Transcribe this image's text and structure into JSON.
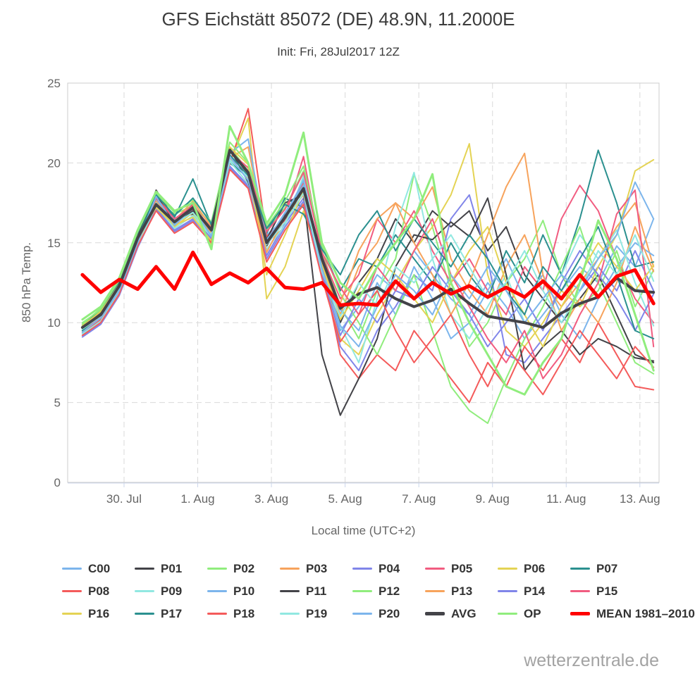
{
  "header": {
    "title": "GFS Eichstätt 85072 (DE) 48.9N, 11.2000E",
    "subtitle": "Init: Fri, 28Jul2017 12Z"
  },
  "footer": {
    "brand": "wetterzentrale.de"
  },
  "colors": {
    "grid": "#d9d9d9",
    "plot_border": "#cccccc",
    "axis_line": "#ccd6eb",
    "tick_label": "#666666",
    "mean_red": "#ff0000"
  },
  "chart_data": {
    "type": "line",
    "title": "GFS Eichstätt 85072 (DE) 48.9N, 11.2000E",
    "subtitle": "Init: Fri, 28Jul2017 12Z",
    "xlabel": "Local time (UTC+2)",
    "ylabel": "850 hPa Temp.",
    "ylim": [
      0,
      25
    ],
    "yticks": [
      0,
      5,
      10,
      15,
      20,
      25
    ],
    "xlim": [
      0,
      16.05
    ],
    "xticks": [
      {
        "pos": 1.53,
        "label": "30. Jul"
      },
      {
        "pos": 3.53,
        "label": "1. Aug"
      },
      {
        "pos": 5.53,
        "label": "3. Aug"
      },
      {
        "pos": 7.53,
        "label": "5. Aug"
      },
      {
        "pos": 9.53,
        "label": "7. Aug"
      },
      {
        "pos": 11.53,
        "label": "9. Aug"
      },
      {
        "pos": 13.53,
        "label": "11. Aug"
      },
      {
        "pos": 15.53,
        "label": "13. Aug"
      }
    ],
    "grid": "dashed",
    "legend_position": "bottom",
    "x": [
      0.4,
      0.9,
      1.4,
      1.9,
      2.4,
      2.9,
      3.4,
      3.9,
      4.4,
      4.9,
      5.4,
      5.9,
      6.4,
      6.9,
      7.4,
      7.9,
      8.4,
      8.9,
      9.4,
      9.9,
      10.4,
      10.9,
      11.4,
      11.9,
      12.4,
      12.9,
      13.4,
      13.9,
      14.4,
      14.9,
      15.4,
      15.9
    ],
    "series": [
      {
        "name": "C00",
        "color": "#7cb5ec",
        "width": 2,
        "values": [
          9.3,
          10.2,
          12.0,
          15.0,
          17.8,
          16.0,
          17.5,
          15.5,
          20.5,
          19.2,
          15.5,
          16.5,
          19.0,
          13.5,
          9.5,
          11.0,
          13.0,
          12.0,
          14.5,
          13.0,
          11.5,
          10.5,
          12.5,
          11.0,
          9.0,
          10.5,
          12.0,
          13.5,
          12.5,
          14.8,
          13.5,
          16.5
        ]
      },
      {
        "name": "P01",
        "color": "#434348",
        "width": 2,
        "values": [
          9.6,
          10.4,
          12.1,
          15.1,
          18.3,
          16.5,
          16.8,
          15.9,
          20.2,
          19.0,
          14.8,
          16.8,
          18.2,
          13.0,
          10.0,
          12.5,
          14.0,
          16.5,
          15.0,
          17.0,
          16.0,
          17.0,
          14.5,
          16.0,
          13.0,
          11.5,
          10.0,
          11.5,
          13.0,
          10.5,
          8.0,
          7.5
        ]
      },
      {
        "name": "P02",
        "color": "#90ed7d",
        "width": 2,
        "values": [
          10.0,
          10.8,
          12.6,
          15.6,
          17.6,
          16.8,
          17.3,
          16.2,
          21.0,
          19.5,
          15.8,
          17.2,
          19.5,
          14.5,
          11.0,
          9.0,
          12.0,
          14.0,
          19.3,
          16.0,
          12.0,
          8.5,
          10.0,
          12.5,
          14.0,
          16.4,
          13.0,
          11.0,
          12.0,
          14.5,
          11.0,
          13.3
        ]
      },
      {
        "name": "P03",
        "color": "#f7a35c",
        "width": 2,
        "values": [
          9.5,
          10.3,
          12.2,
          15.2,
          18.1,
          16.4,
          17.6,
          16.0,
          20.3,
          21.0,
          15.0,
          16.0,
          17.5,
          13.8,
          10.5,
          13.5,
          15.0,
          17.5,
          16.5,
          18.5,
          14.0,
          12.0,
          10.5,
          13.5,
          15.5,
          12.5,
          11.0,
          12.5,
          14.0,
          16.0,
          17.5,
          13.5
        ]
      },
      {
        "name": "P04",
        "color": "#8085e9",
        "width": 2,
        "values": [
          9.2,
          10.0,
          11.8,
          14.8,
          17.2,
          15.8,
          16.5,
          15.3,
          19.8,
          18.6,
          14.2,
          16.2,
          17.8,
          13.2,
          8.5,
          7.0,
          9.5,
          11.0,
          13.0,
          12.0,
          16.5,
          18.0,
          14.0,
          8.0,
          7.5,
          9.0,
          10.5,
          12.0,
          13.5,
          12.0,
          14.5,
          12.0
        ]
      },
      {
        "name": "P05",
        "color": "#f15c80",
        "width": 2,
        "values": [
          9.4,
          10.1,
          12.0,
          15.0,
          17.7,
          16.1,
          17.1,
          15.7,
          20.4,
          19.3,
          15.3,
          16.6,
          20.4,
          14.2,
          11.5,
          13.0,
          16.5,
          15.0,
          17.0,
          14.5,
          12.5,
          14.0,
          12.0,
          10.5,
          13.5,
          12.0,
          16.5,
          18.6,
          17.0,
          14.0,
          11.5,
          10.0
        ]
      },
      {
        "name": "P06",
        "color": "#e4d354",
        "width": 2,
        "values": [
          9.6,
          10.5,
          12.3,
          15.3,
          17.5,
          16.0,
          16.9,
          14.9,
          20.0,
          22.8,
          11.5,
          13.5,
          17.0,
          13.5,
          9.0,
          8.0,
          10.5,
          12.5,
          14.5,
          16.0,
          18.0,
          21.2,
          13.0,
          9.5,
          8.5,
          10.0,
          12.0,
          11.0,
          13.5,
          15.5,
          19.5,
          20.2
        ]
      },
      {
        "name": "P07",
        "color": "#2b908f",
        "width": 2,
        "values": [
          9.9,
          10.7,
          12.5,
          15.5,
          17.9,
          16.6,
          19.0,
          16.1,
          20.0,
          19.1,
          15.6,
          17.8,
          17.2,
          14.8,
          12.0,
          14.0,
          13.5,
          15.5,
          14.0,
          12.5,
          15.0,
          13.0,
          11.5,
          14.5,
          12.5,
          15.5,
          13.0,
          16.5,
          20.8,
          17.5,
          13.5,
          13.8
        ]
      },
      {
        "name": "P08",
        "color": "#f45b5b",
        "width": 2,
        "values": [
          9.4,
          10.2,
          12.1,
          15.1,
          18.2,
          16.3,
          17.4,
          15.8,
          20.0,
          23.4,
          15.4,
          16.4,
          18.8,
          13.6,
          8.0,
          6.5,
          8.0,
          7.0,
          9.5,
          8.0,
          6.5,
          5.0,
          7.5,
          6.0,
          8.5,
          7.0,
          9.0,
          7.5,
          10.0,
          8.0,
          6.0,
          5.8
        ]
      },
      {
        "name": "P09",
        "color": "#91e8e1",
        "width": 2,
        "values": [
          9.3,
          10.1,
          11.9,
          14.9,
          17.3,
          15.9,
          16.7,
          15.4,
          20.1,
          18.7,
          14.6,
          16.1,
          19.2,
          13.4,
          9.8,
          7.5,
          11.5,
          16.0,
          19.4,
          14.0,
          10.5,
          9.0,
          11.0,
          13.0,
          10.0,
          11.5,
          13.0,
          15.5,
          14.0,
          15.8,
          12.5,
          9.8
        ]
      },
      {
        "name": "P10",
        "color": "#7cb5ec",
        "width": 2,
        "values": [
          9.7,
          10.6,
          12.2,
          15.2,
          17.7,
          16.4,
          17.0,
          15.7,
          20.6,
          21.5,
          15.1,
          16.9,
          18.6,
          13.9,
          10.8,
          9.5,
          12.5,
          10.5,
          13.5,
          11.5,
          9.0,
          10.0,
          12.0,
          14.0,
          11.5,
          13.0,
          10.5,
          9.0,
          11.5,
          13.5,
          15.0,
          14.2
        ]
      },
      {
        "name": "P11",
        "color": "#434348",
        "width": 2,
        "values": [
          9.8,
          10.6,
          12.4,
          15.4,
          18.0,
          16.2,
          17.0,
          15.6,
          20.9,
          18.8,
          15.2,
          17.5,
          18.0,
          8.0,
          4.2,
          6.5,
          9.0,
          13.5,
          15.5,
          15.2,
          16.3,
          15.4,
          17.8,
          13.0,
          7.0,
          8.5,
          9.5,
          8.0,
          9.0,
          8.5,
          7.8,
          7.6
        ]
      },
      {
        "name": "P12",
        "color": "#90ed7d",
        "width": 2,
        "values": [
          9.9,
          10.9,
          12.7,
          15.7,
          18.1,
          16.9,
          17.7,
          16.3,
          21.3,
          20.0,
          16.0,
          17.6,
          19.8,
          14.8,
          11.8,
          10.0,
          8.0,
          10.5,
          13.0,
          9.5,
          6.0,
          4.5,
          3.7,
          6.5,
          9.0,
          11.0,
          13.5,
          16.0,
          12.5,
          10.0,
          7.5,
          6.8
        ]
      },
      {
        "name": "P13",
        "color": "#f7a35c",
        "width": 2,
        "values": [
          9.5,
          10.4,
          12.0,
          15.0,
          17.6,
          16.2,
          17.2,
          15.6,
          20.3,
          19.0,
          14.4,
          16.6,
          18.0,
          13.3,
          11.2,
          14.5,
          16.5,
          17.5,
          15.0,
          13.0,
          10.5,
          12.5,
          15.5,
          18.5,
          20.6,
          13.0,
          9.5,
          11.5,
          10.0,
          12.5,
          16.0,
          13.2
        ]
      },
      {
        "name": "P14",
        "color": "#8085e9",
        "width": 2,
        "values": [
          9.1,
          9.9,
          11.7,
          14.7,
          17.1,
          15.7,
          16.4,
          15.2,
          19.7,
          18.5,
          14.0,
          16.0,
          17.6,
          13.1,
          9.2,
          11.5,
          10.0,
          12.0,
          11.5,
          13.5,
          12.0,
          10.5,
          8.5,
          10.0,
          11.5,
          9.5,
          12.5,
          14.5,
          13.0,
          11.5,
          9.5,
          11.8
        ]
      },
      {
        "name": "P15",
        "color": "#f15c80",
        "width": 2,
        "values": [
          9.6,
          10.3,
          12.2,
          15.2,
          17.8,
          16.5,
          17.3,
          15.9,
          20.7,
          19.7,
          15.7,
          17.1,
          19.4,
          14.4,
          12.2,
          10.5,
          13.5,
          12.0,
          14.5,
          16.5,
          13.0,
          11.0,
          9.0,
          7.5,
          9.5,
          6.5,
          8.0,
          10.5,
          12.5,
          16.8,
          18.3,
          8.5
        ]
      },
      {
        "name": "P16",
        "color": "#e4d354",
        "width": 2,
        "values": [
          9.8,
          10.7,
          12.4,
          15.4,
          17.2,
          16.1,
          16.6,
          15.1,
          21.0,
          19.9,
          13.0,
          15.5,
          18.3,
          13.7,
          10.2,
          12.0,
          14.0,
          13.0,
          11.5,
          10.0,
          12.5,
          14.5,
          16.0,
          12.5,
          10.5,
          8.5,
          11.0,
          13.0,
          15.0,
          13.5,
          12.0,
          13.6
        ]
      },
      {
        "name": "P17",
        "color": "#2b908f",
        "width": 2,
        "values": [
          9.5,
          10.5,
          12.3,
          15.3,
          18.0,
          16.7,
          17.8,
          16.2,
          20.5,
          19.2,
          15.9,
          17.4,
          16.8,
          14.6,
          13.0,
          15.5,
          17.0,
          14.5,
          16.5,
          15.0,
          13.5,
          15.5,
          14.0,
          12.0,
          10.5,
          13.5,
          12.0,
          14.0,
          16.0,
          13.0,
          9.5,
          9.0
        ]
      },
      {
        "name": "P18",
        "color": "#f45b5b",
        "width": 2,
        "values": [
          9.2,
          10.0,
          11.8,
          14.8,
          17.0,
          15.6,
          16.3,
          15.0,
          19.6,
          18.4,
          13.8,
          15.8,
          17.4,
          12.8,
          8.8,
          10.5,
          12.0,
          9.5,
          7.5,
          9.0,
          10.5,
          8.0,
          6.0,
          8.5,
          7.0,
          5.5,
          7.5,
          9.5,
          8.0,
          6.5,
          8.5,
          7.2
        ]
      },
      {
        "name": "P19",
        "color": "#91e8e1",
        "width": 2,
        "values": [
          9.6,
          10.4,
          12.1,
          15.1,
          17.5,
          16.2,
          16.9,
          15.5,
          20.2,
          19.1,
          14.9,
          16.3,
          18.1,
          13.2,
          10.4,
          12.5,
          11.0,
          13.5,
          12.5,
          14.0,
          15.5,
          13.5,
          11.5,
          12.5,
          14.5,
          12.0,
          10.0,
          12.0,
          14.5,
          13.0,
          15.5,
          12.6
        ]
      },
      {
        "name": "P20",
        "color": "#7cb5ec",
        "width": 2,
        "values": [
          9.4,
          10.3,
          12.0,
          15.0,
          17.9,
          16.1,
          17.2,
          15.4,
          20.4,
          18.9,
          15.2,
          16.7,
          18.9,
          13.4,
          9.8,
          8.5,
          11.0,
          13.0,
          12.0,
          10.5,
          13.0,
          11.5,
          13.5,
          12.0,
          10.0,
          11.5,
          13.0,
          12.0,
          14.0,
          15.5,
          18.8,
          16.5
        ]
      },
      {
        "name": "AVG",
        "color": "#434348",
        "width": 4,
        "values": [
          9.7,
          10.5,
          12.3,
          15.3,
          17.4,
          16.3,
          17.2,
          15.8,
          20.8,
          19.4,
          15.0,
          16.6,
          18.4,
          14.0,
          10.9,
          11.8,
          12.2,
          11.5,
          11.0,
          11.4,
          12.1,
          11.2,
          10.4,
          10.2,
          10.0,
          9.7,
          10.6,
          11.2,
          11.6,
          12.8,
          12.0,
          11.9
        ]
      },
      {
        "name": "OP",
        "color": "#90ed7d",
        "width": 3,
        "values": [
          10.2,
          11.0,
          12.8,
          15.8,
          18.2,
          17.0,
          17.5,
          14.6,
          22.3,
          20.0,
          16.2,
          18.0,
          21.9,
          15.0,
          12.5,
          11.5,
          13.5,
          15.0,
          16.5,
          19.3,
          12.5,
          10.0,
          8.0,
          6.0,
          5.5,
          7.5,
          9.0,
          12.5,
          16.4,
          14.0,
          10.5,
          7.0
        ]
      },
      {
        "name": "MEAN 1981–2010",
        "color": "#ff0000",
        "width": 5,
        "values": [
          13.0,
          11.9,
          12.7,
          12.1,
          13.5,
          12.1,
          14.4,
          12.4,
          13.1,
          12.5,
          13.4,
          12.2,
          12.1,
          12.5,
          11.1,
          11.2,
          11.1,
          12.6,
          11.5,
          12.5,
          11.8,
          12.3,
          11.6,
          12.2,
          11.6,
          12.6,
          11.5,
          13.0,
          11.6,
          12.9,
          13.3,
          11.2
        ]
      }
    ]
  }
}
